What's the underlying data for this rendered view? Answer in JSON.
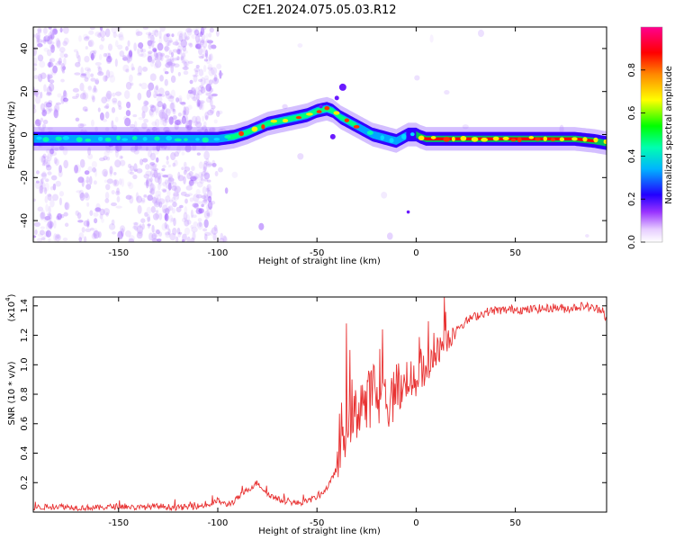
{
  "title": "C2E1.2024.075.05.03.R12",
  "chart_data": [
    {
      "type": "heatmap",
      "xlabel": "Height of straight line (km)",
      "ylabel": "Frequency (Hz)",
      "xlim": [
        -193,
        96
      ],
      "ylim": [
        -50,
        50
      ],
      "xticks": [
        -150,
        -100,
        -50,
        0,
        50
      ],
      "yticks": [
        -40,
        -20,
        0,
        20,
        40
      ],
      "xtick_labels": [
        "-150",
        "-100",
        "-50",
        "0",
        "50"
      ],
      "ytick_labels": [
        "-40",
        "-20",
        "0",
        "20",
        "40"
      ],
      "colorbar": {
        "label": "Normalized spectral amplitude",
        "range": [
          0,
          1
        ],
        "ticks": [
          0.0,
          0.2,
          0.4,
          0.6,
          0.8
        ],
        "tick_labels": [
          "0.0",
          "0.2",
          "0.4",
          "0.6",
          "0.8"
        ],
        "colors": [
          "#ffffff",
          "#cc99ff",
          "#7700ff",
          "#0000ff",
          "#00c8ff",
          "#00ff60",
          "#ffff00",
          "#ff8800",
          "#ff0000",
          "#ff0090"
        ]
      },
      "ridge": {
        "x": [
          -193,
          -170,
          -150,
          -130,
          -110,
          -100,
          -92,
          -85,
          -80,
          -75,
          -70,
          -65,
          -60,
          -55,
          -50,
          -45,
          -42,
          -38,
          -34,
          -30,
          -26,
          -22,
          -18,
          -14,
          -10,
          -8,
          -6,
          -4,
          -2,
          0,
          2,
          5,
          10,
          20,
          40,
          60,
          80,
          90,
          96
        ],
        "y": [
          -2,
          -2,
          -2,
          -2,
          -2,
          -2,
          -1,
          1,
          3,
          5,
          6,
          7,
          8,
          9,
          11,
          12,
          11,
          8,
          6,
          4,
          2,
          0,
          -1,
          -2,
          -3,
          -2,
          -1,
          0,
          0,
          0,
          -1,
          -2,
          -2,
          -2,
          -2,
          -2,
          -2,
          -3,
          -4
        ]
      }
    },
    {
      "type": "line",
      "xlabel": "Height of straight line (km)",
      "ylabel": "SNR (10 * v/v)",
      "yscale_label": "(x10",
      "yscale_exp": "4",
      "yscale_close": ")",
      "xlim": [
        -193,
        96
      ],
      "ylim": [
        0,
        1.46
      ],
      "xticks": [
        -150,
        -100,
        -50,
        0,
        50
      ],
      "yticks": [
        0.2,
        0.4,
        0.6,
        0.8,
        1.0,
        1.2,
        1.4
      ],
      "xtick_labels": [
        "-150",
        "-100",
        "-50",
        "0",
        "50"
      ],
      "ytick_labels": [
        "0.2",
        "0.4",
        "0.6",
        "0.8",
        "1.0",
        "1.2",
        "1.4"
      ],
      "color": "#e83232",
      "series": [
        {
          "x": [
            -193,
            -180,
            -170,
            -160,
            -150,
            -140,
            -130,
            -120,
            -110,
            -104,
            -100,
            -96,
            -92,
            -88,
            -84,
            -80,
            -76,
            -72,
            -68,
            -64,
            -60,
            -56,
            -52,
            -48,
            -44,
            -40,
            -37,
            -34,
            -31,
            -28,
            -25,
            -22,
            -19,
            -16,
            -13,
            -10,
            -7,
            -4,
            -1,
            2,
            5,
            8,
            11,
            14,
            17,
            20,
            24,
            28,
            32,
            36,
            40,
            45,
            50,
            55,
            60,
            65,
            70,
            75,
            80,
            85,
            90,
            94,
            96
          ],
          "y": [
            0.03,
            0.04,
            0.03,
            0.03,
            0.04,
            0.03,
            0.04,
            0.03,
            0.04,
            0.05,
            0.08,
            0.05,
            0.07,
            0.12,
            0.16,
            0.2,
            0.14,
            0.1,
            0.08,
            0.07,
            0.06,
            0.07,
            0.09,
            0.12,
            0.18,
            0.3,
            0.55,
            0.75,
            0.6,
            0.8,
            0.7,
            0.85,
            0.75,
            0.8,
            0.7,
            0.9,
            0.8,
            0.95,
            0.85,
            1.0,
            0.9,
            1.05,
            1.1,
            1.15,
            1.18,
            1.25,
            1.28,
            1.32,
            1.34,
            1.36,
            1.37,
            1.37,
            1.38,
            1.37,
            1.38,
            1.38,
            1.39,
            1.38,
            1.39,
            1.4,
            1.38,
            1.38,
            1.3
          ]
        }
      ]
    }
  ]
}
